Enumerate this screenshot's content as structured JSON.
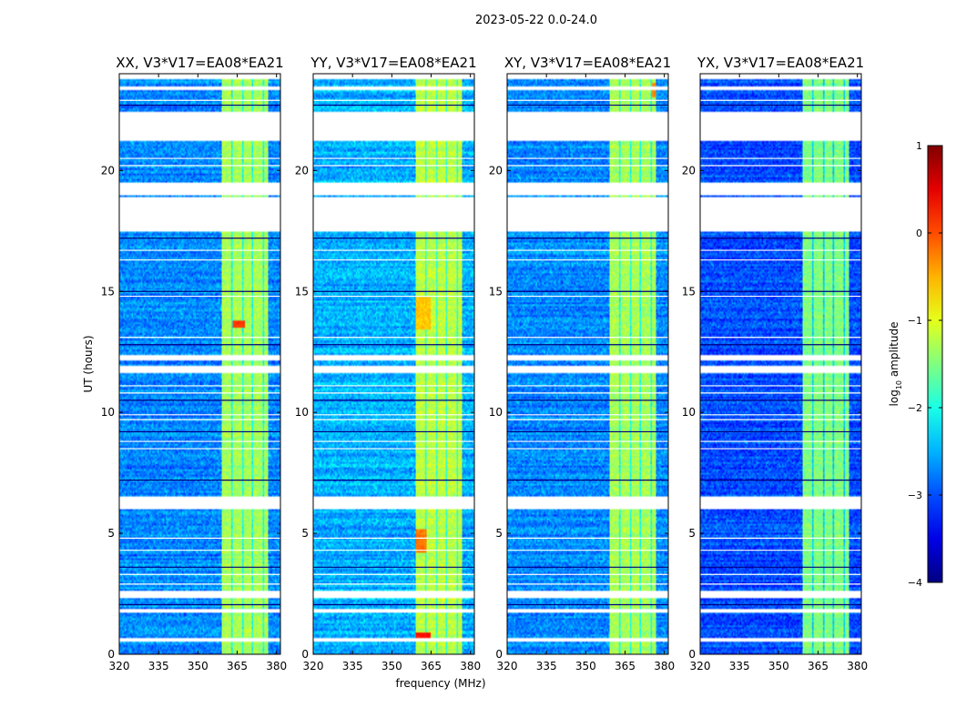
{
  "figure": {
    "suptitle": "2023-05-22 0.0-24.0",
    "xlabel": "frequency (MHz)",
    "ylabel": "UT (hours)"
  },
  "chart_data": {
    "type": "heatmap",
    "xlim": [
      320,
      381.5
    ],
    "ylim": [
      0,
      24
    ],
    "xticks": [
      320,
      335,
      350,
      365,
      380
    ],
    "yticks": [
      0,
      5,
      10,
      15,
      20
    ],
    "xtick_labels": [
      "320",
      "335",
      "350",
      "365",
      "380"
    ],
    "ytick_labels": [
      "0",
      "5",
      "10",
      "15",
      "20"
    ],
    "panels": [
      {
        "title": "XX, V3*V17=EA08*EA21",
        "pol": "XX"
      },
      {
        "title": "YY, V3*V17=EA08*EA21",
        "pol": "YY"
      },
      {
        "title": "XY, V3*V17=EA08*EA21",
        "pol": "XY"
      },
      {
        "title": "YX, V3*V17=EA08*EA21",
        "pol": "YX"
      }
    ],
    "base_level": [
      -2.7,
      -2.5,
      -2.7,
      -3.0
    ],
    "band_freq_range": [
      359,
      377
    ],
    "band_level": [
      -1.3,
      -1.2,
      -1.3,
      -1.5
    ],
    "band_gaps_mhz": [
      [
        362.5,
        363.5
      ],
      [
        366.8,
        367.5
      ],
      [
        370.3,
        371
      ],
      [
        374.5,
        375.5
      ]
    ],
    "bright_spots": [
      {
        "panel": "XX",
        "freq": [
          363,
          368
        ],
        "time": [
          13.5,
          13.8
        ],
        "level": 0.1
      },
      {
        "panel": "YY",
        "freq": [
          359,
          365
        ],
        "time": [
          0.7,
          0.9
        ],
        "level": 0.3
      },
      {
        "panel": "YY",
        "freq": [
          359,
          363
        ],
        "time": [
          4.2,
          5.2
        ],
        "level": -0.2
      },
      {
        "panel": "YY",
        "freq": [
          359,
          365
        ],
        "time": [
          13.4,
          14.8
        ],
        "level": -0.6
      },
      {
        "panel": "XY",
        "freq": [
          375,
          377
        ],
        "time": [
          23.0,
          23.6
        ],
        "level": -0.3
      }
    ],
    "flagged_time_ranges": [
      [
        23.75,
        24.0
      ],
      [
        23.3,
        23.45
      ],
      [
        21.2,
        22.4
      ],
      [
        19.0,
        19.5
      ],
      [
        17.5,
        18.9
      ],
      [
        12.15,
        12.35
      ],
      [
        11.65,
        11.95
      ],
      [
        6.0,
        6.5
      ],
      [
        2.3,
        2.6
      ],
      [
        1.75,
        1.85
      ],
      [
        0.55,
        0.65
      ],
      [
        0.05,
        0.1
      ]
    ],
    "flagged_lines": [
      22.9,
      22.7,
      20.5,
      20.2,
      17.2,
      16.7,
      16.3,
      15.0,
      14.8,
      13.1,
      12.8,
      11.1,
      10.8,
      10.5,
      9.9,
      9.7,
      9.2,
      8.8,
      8.5,
      7.2,
      4.8,
      4.3,
      3.6,
      3.3,
      2.9,
      2.05
    ],
    "colorbar": {
      "label": "log10 amplitude",
      "min": -4,
      "max": 1,
      "ticks": [
        1,
        0,
        -1,
        -2,
        -3,
        -4
      ],
      "tick_labels": [
        "1",
        "0",
        "−1",
        "−2",
        "−3",
        "−4"
      ]
    }
  }
}
